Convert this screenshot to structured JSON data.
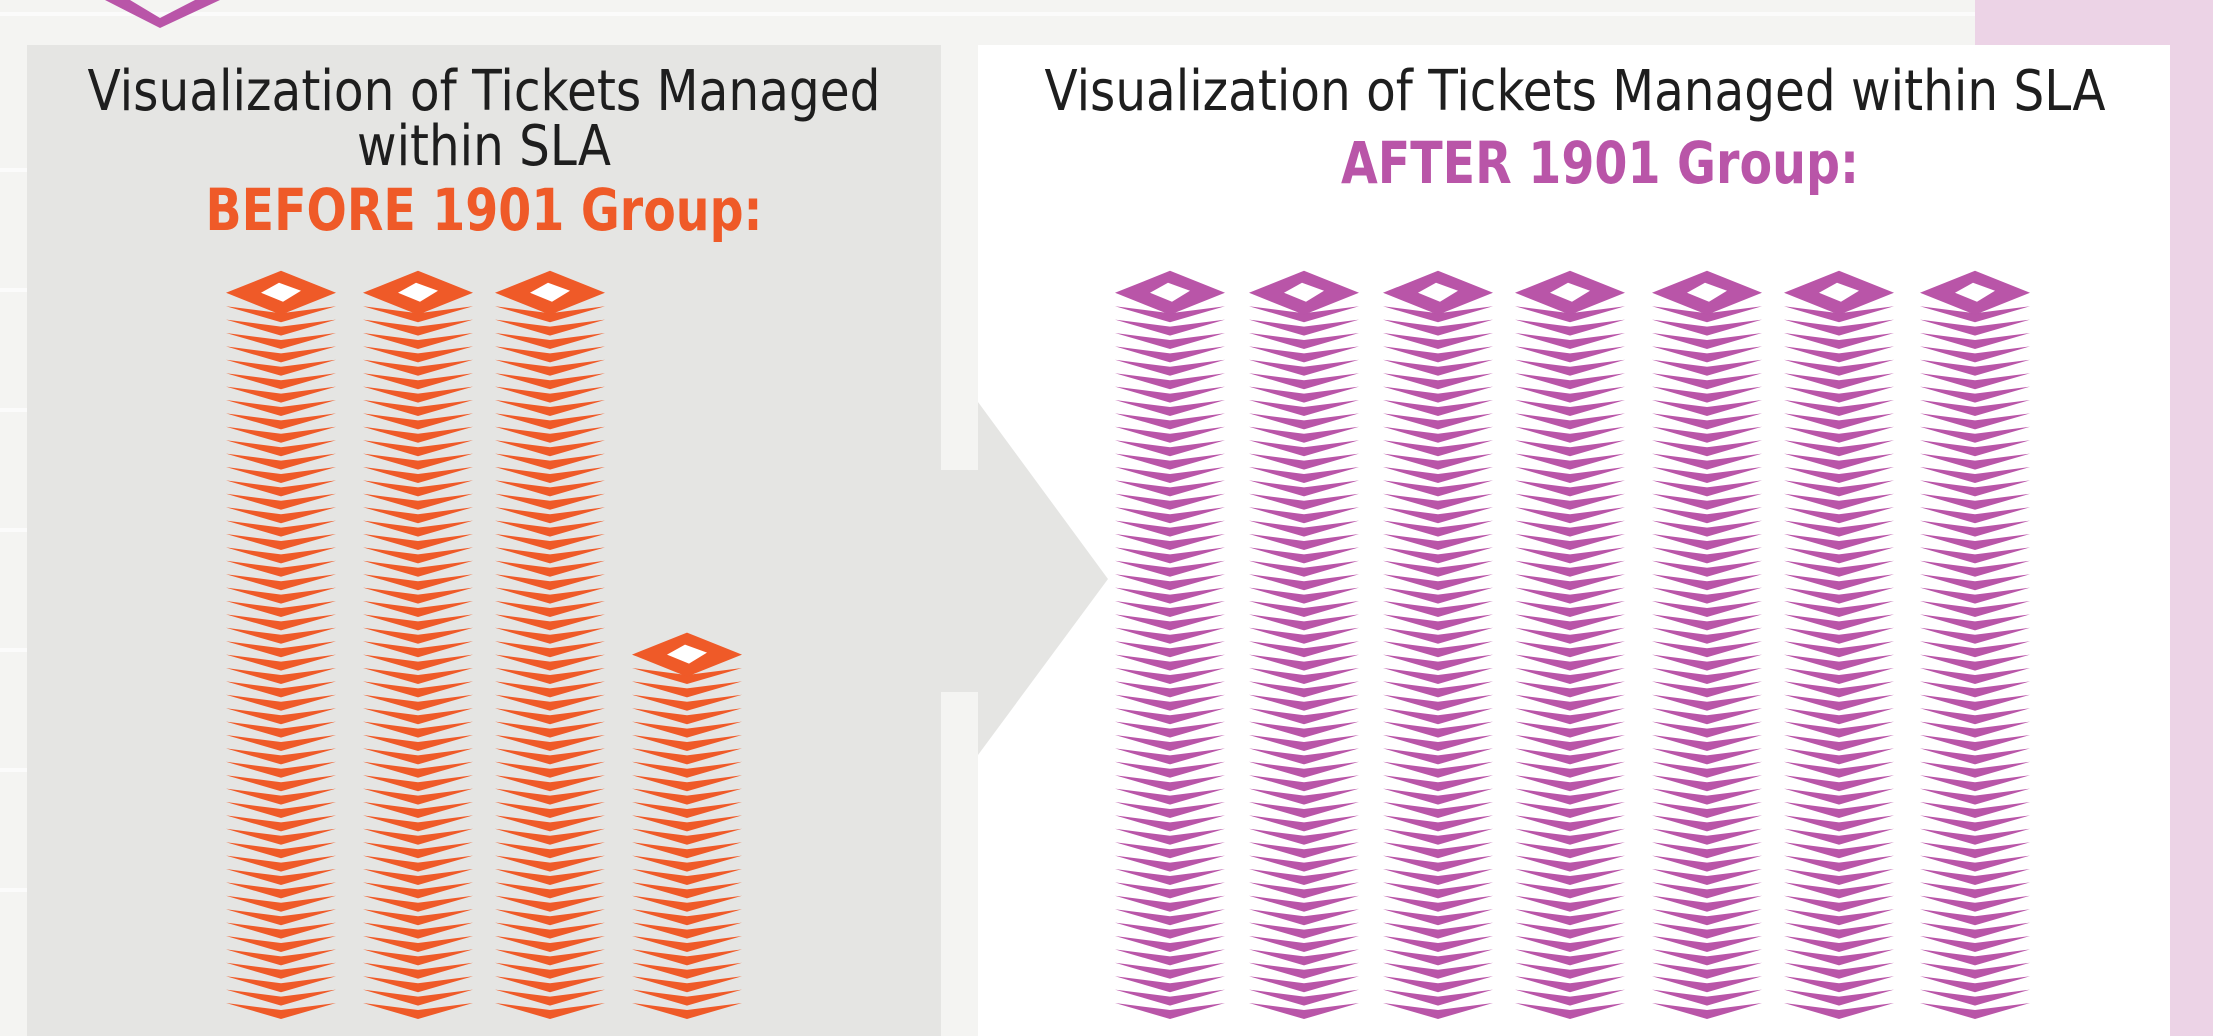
{
  "before": {
    "title_lines": [
      "Visualization of Tickets Managed",
      "within SLA"
    ],
    "label": "BEFORE 1901 Group:",
    "color": "#ef5a28",
    "stacks": [
      53,
      53,
      53,
      26
    ]
  },
  "after": {
    "title_lines": [
      "Visualization of Tickets Managed within SLA"
    ],
    "label": "AFTER 1901 Group:",
    "color": "#b955a8",
    "stacks": [
      53,
      53,
      53,
      53,
      53,
      53,
      53
    ]
  }
}
